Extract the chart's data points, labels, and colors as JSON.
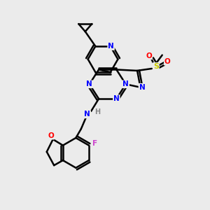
{
  "bg_color": "#ebebeb",
  "atom_colors": {
    "N": "#0000ff",
    "O": "#ff0000",
    "S": "#cccc00",
    "F": "#cc44cc",
    "H": "#888888",
    "C": "#000000"
  },
  "bond_color": "#000000",
  "bond_width": 1.8
}
